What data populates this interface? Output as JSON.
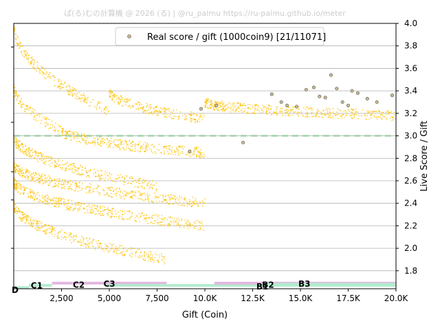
{
  "credit": "ぱ(る)むの計算機 @ 2026 (る) | @ru_palmu  https://ru-palmu.github.io/meter",
  "chart_data": {
    "type": "scatter",
    "xlabel": "Gift (Coin)",
    "ylabel": "Live Score / Gift",
    "xlim": [
      0,
      20000
    ],
    "ylim": [
      1.64,
      4.0
    ],
    "x_ticks": [
      {
        "value": 2500,
        "label": "2,500"
      },
      {
        "value": 5000,
        "label": "5,000"
      },
      {
        "value": 7500,
        "label": "7,500"
      },
      {
        "value": 10000,
        "label": "10.0K"
      },
      {
        "value": 12500,
        "label": "12.5K"
      },
      {
        "value": 15000,
        "label": "15.0K"
      },
      {
        "value": 17500,
        "label": "17.5K"
      },
      {
        "value": 20000,
        "label": "20.0K"
      }
    ],
    "y_ticks": [
      {
        "value": 4.0,
        "label": "4.0"
      },
      {
        "value": 3.8,
        "label": "3.8"
      },
      {
        "value": 3.6,
        "label": "3.6"
      },
      {
        "value": 3.4,
        "label": "3.4"
      },
      {
        "value": 3.2,
        "label": "3.2"
      },
      {
        "value": 3.0,
        "label": "3.0"
      },
      {
        "value": 2.8,
        "label": "2.8"
      },
      {
        "value": 2.6,
        "label": "2.6"
      },
      {
        "value": 2.4,
        "label": "2.4"
      },
      {
        "value": 2.2,
        "label": "2.2"
      },
      {
        "value": 2.0,
        "label": "2.0"
      },
      {
        "value": 1.8,
        "label": "1.8"
      }
    ],
    "left_ticks": [
      3.79,
      3.12,
      2.68,
      2.43,
      2.0
    ],
    "grid": "horizontal",
    "reference_line": {
      "y": 3.0,
      "color": "#9fd4a8",
      "style": "dashed"
    },
    "legend": {
      "entry": "Real score / gift (1000coin9) [21/11071]",
      "placement": "top-center"
    },
    "background_series": {
      "color": "#ffc000",
      "description_count": 11050,
      "clusters": [
        {
          "x": [
            0,
            5000
          ],
          "y_start": 4.0,
          "y_end": 3.22
        },
        {
          "x": [
            5000,
            10000
          ],
          "y_start": 3.4,
          "y_end": 3.15
        },
        {
          "x": [
            10000,
            20000
          ],
          "y_start": 3.3,
          "y_end": 3.18
        },
        {
          "x": [
            0,
            2500
          ],
          "y_start": 3.45,
          "y_end": 3.05
        },
        {
          "x": [
            2500,
            10000
          ],
          "y_start": 3.05,
          "y_end": 2.85
        },
        {
          "x": [
            0,
            7500
          ],
          "y_start": 3.0,
          "y_end": 2.55
        },
        {
          "x": [
            0,
            10000
          ],
          "y_start": 2.75,
          "y_end": 2.4
        },
        {
          "x": [
            0,
            10000
          ],
          "y_start": 2.6,
          "y_end": 2.2
        },
        {
          "x": [
            0,
            8000
          ],
          "y_start": 2.4,
          "y_end": 1.9
        }
      ]
    },
    "real_points": [
      {
        "x": 13500,
        "y": 3.37
      },
      {
        "x": 14000,
        "y": 3.3
      },
      {
        "x": 14300,
        "y": 3.27
      },
      {
        "x": 14800,
        "y": 3.26
      },
      {
        "x": 15300,
        "y": 3.41
      },
      {
        "x": 15700,
        "y": 3.43
      },
      {
        "x": 16000,
        "y": 3.35
      },
      {
        "x": 16300,
        "y": 3.34
      },
      {
        "x": 16600,
        "y": 3.54
      },
      {
        "x": 16900,
        "y": 3.42
      },
      {
        "x": 17200,
        "y": 3.3
      },
      {
        "x": 17500,
        "y": 3.27
      },
      {
        "x": 17700,
        "y": 3.4
      },
      {
        "x": 18000,
        "y": 3.38
      },
      {
        "x": 18500,
        "y": 3.33
      },
      {
        "x": 19000,
        "y": 3.3
      },
      {
        "x": 19800,
        "y": 3.36
      },
      {
        "x": 10600,
        "y": 3.27
      },
      {
        "x": 9800,
        "y": 3.24
      },
      {
        "x": 9200,
        "y": 2.86
      },
      {
        "x": 12000,
        "y": 2.94
      }
    ],
    "rank_bands": [
      {
        "label": "D",
        "x": [
          0,
          800
        ],
        "level": 1.65,
        "color": "#b3ecd0"
      },
      {
        "label": "C1",
        "x": [
          800,
          2000
        ],
        "level": 1.67,
        "color": "#b3ecd0"
      },
      {
        "label": "C2",
        "x": [
          2000,
          8000
        ],
        "level": 1.69,
        "color": "#e3b8e0"
      },
      {
        "label": "C3",
        "x": [
          4800,
          10500
        ],
        "level": 1.67,
        "color": "#b3ecd0"
      },
      {
        "label": "B1",
        "x": [
          10500,
          20000
        ],
        "level": 1.67,
        "color": "#b3ecd0"
      },
      {
        "label": "B2",
        "x": [
          10500,
          20000
        ],
        "level": 1.69,
        "color": "#e3b8e0"
      },
      {
        "label": "B3",
        "x": [
          13000,
          20000
        ],
        "level": 1.68,
        "color": "#b3ecd0"
      }
    ],
    "rank_labels": [
      {
        "label": "D",
        "x": 0,
        "y": 1.635
      },
      {
        "label": "C1",
        "x": 1000,
        "y": 1.675
      },
      {
        "label": "C2",
        "x": 3200,
        "y": 1.68
      },
      {
        "label": "C3",
        "x": 4800,
        "y": 1.69
      },
      {
        "label": "B1",
        "x": 12800,
        "y": 1.665
      },
      {
        "label": "B2",
        "x": 13100,
        "y": 1.68
      },
      {
        "label": "B3",
        "x": 15000,
        "y": 1.69
      }
    ]
  }
}
